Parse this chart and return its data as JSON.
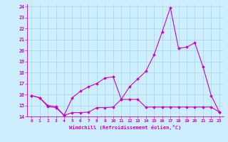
{
  "title": "",
  "xlabel": "Windchill (Refroidissement éolien,°C)",
  "background_color": "#cceeff",
  "grid_color": "#aadddd",
  "line_color": "#cc00cc",
  "xlim": [
    -0.5,
    23.5
  ],
  "ylim": [
    14.0,
    24.2
  ],
  "yticks": [
    14,
    15,
    16,
    17,
    18,
    19,
    20,
    21,
    22,
    23,
    24
  ],
  "xticks": [
    0,
    1,
    2,
    3,
    4,
    5,
    6,
    7,
    8,
    9,
    10,
    11,
    12,
    13,
    14,
    15,
    16,
    17,
    18,
    19,
    20,
    21,
    22,
    23
  ],
  "series1": {
    "x": [
      0,
      1,
      2,
      3,
      4,
      5,
      6,
      7,
      8,
      9,
      10,
      11,
      12,
      13,
      14,
      15,
      16,
      17,
      18,
      19,
      20,
      21,
      22,
      23
    ],
    "y": [
      15.9,
      15.7,
      15.0,
      14.9,
      14.1,
      14.35,
      14.35,
      14.4,
      14.8,
      14.8,
      14.85,
      15.55,
      15.55,
      15.55,
      14.85,
      14.85,
      14.85,
      14.85,
      14.85,
      14.85,
      14.85,
      14.85,
      14.85,
      14.4
    ]
  },
  "series2": {
    "x": [
      0,
      1,
      2,
      3,
      4,
      5,
      6,
      7,
      8,
      9,
      10,
      11,
      12,
      13,
      14,
      15,
      16,
      17,
      18,
      19,
      20,
      21,
      22,
      23
    ],
    "y": [
      15.9,
      15.7,
      14.9,
      14.8,
      14.1,
      15.7,
      16.3,
      16.7,
      17.0,
      17.5,
      17.6,
      15.55,
      16.7,
      17.4,
      18.1,
      19.6,
      21.7,
      23.9,
      20.2,
      20.3,
      20.7,
      18.5,
      15.9,
      14.4
    ]
  }
}
